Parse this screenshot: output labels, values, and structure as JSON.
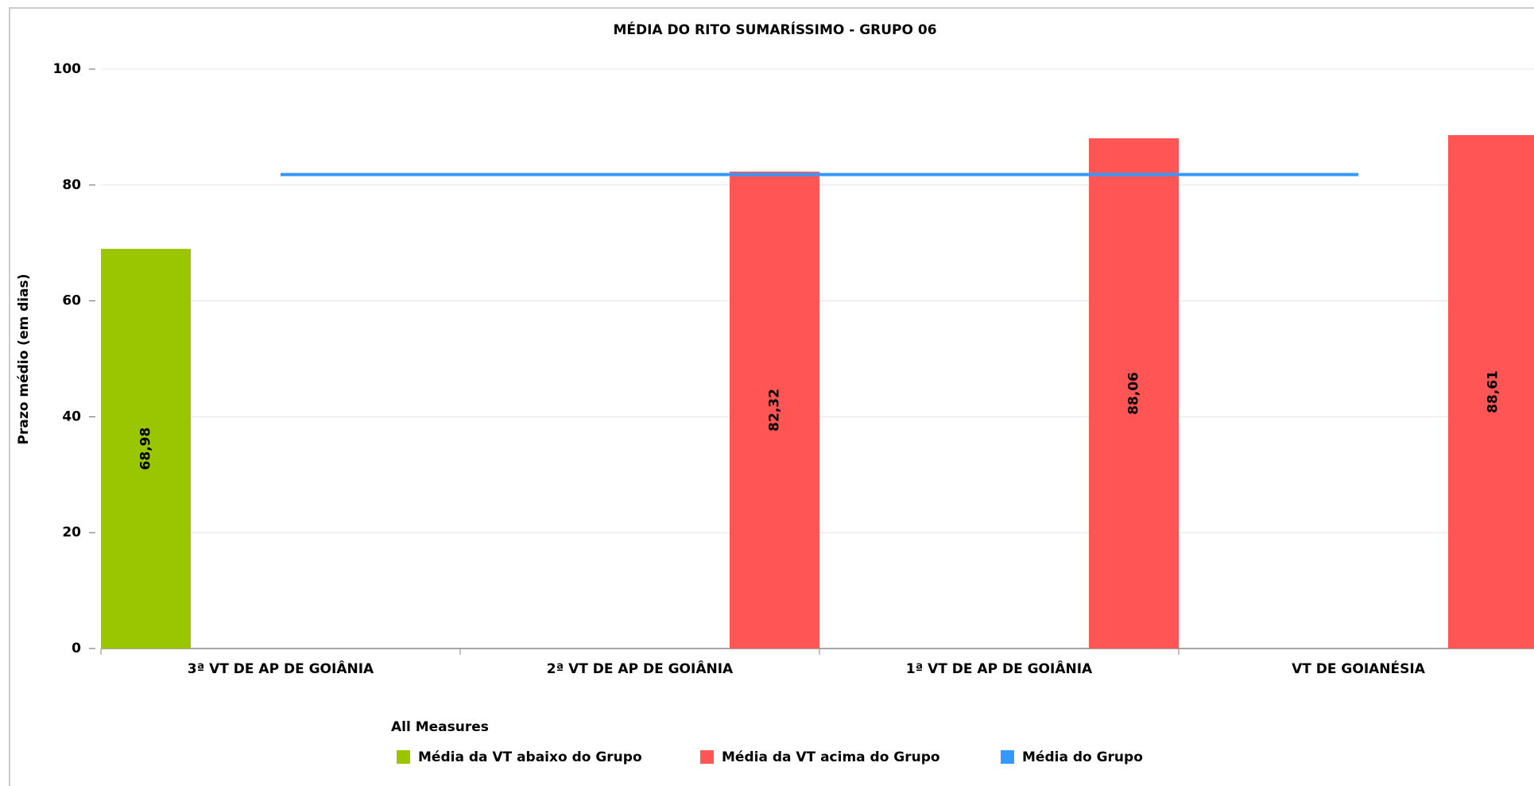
{
  "chart_data": {
    "type": "bar",
    "title": "MÉDIA DO RITO SUMARÍSSIMO - GRUPO 06",
    "y_label": "Prazo médio (em dias)",
    "categories": [
      "3ª VT DE AP DE GOIÂNIA",
      "2ª VT DE AP DE GOIÂNIA",
      "1ª VT DE AP DE GOIÂNIA",
      "VT DE GOIANÉSIA"
    ],
    "series": [
      {
        "name": "Média da VT abaixo do Grupo",
        "color": "#99c600",
        "type": "bar",
        "values": [
          68.98,
          null,
          null,
          null
        ],
        "value_labels": [
          "68,98",
          null,
          null,
          null
        ]
      },
      {
        "name": "Média da VT acima do Grupo",
        "color": "#ff5555",
        "type": "bar",
        "values": [
          null,
          82.32,
          88.06,
          88.61
        ],
        "value_labels": [
          null,
          "82,32",
          "88,06",
          "88,61"
        ]
      },
      {
        "name": "Média do Grupo",
        "color": "#3399ff",
        "type": "line",
        "values": [
          81.8,
          81.8,
          81.8,
          81.8
        ]
      }
    ],
    "legend_title": "All Measures",
    "ylim": [
      0,
      100
    ],
    "yticks": [
      0,
      20,
      40,
      60,
      80,
      100
    ],
    "grid": true
  }
}
